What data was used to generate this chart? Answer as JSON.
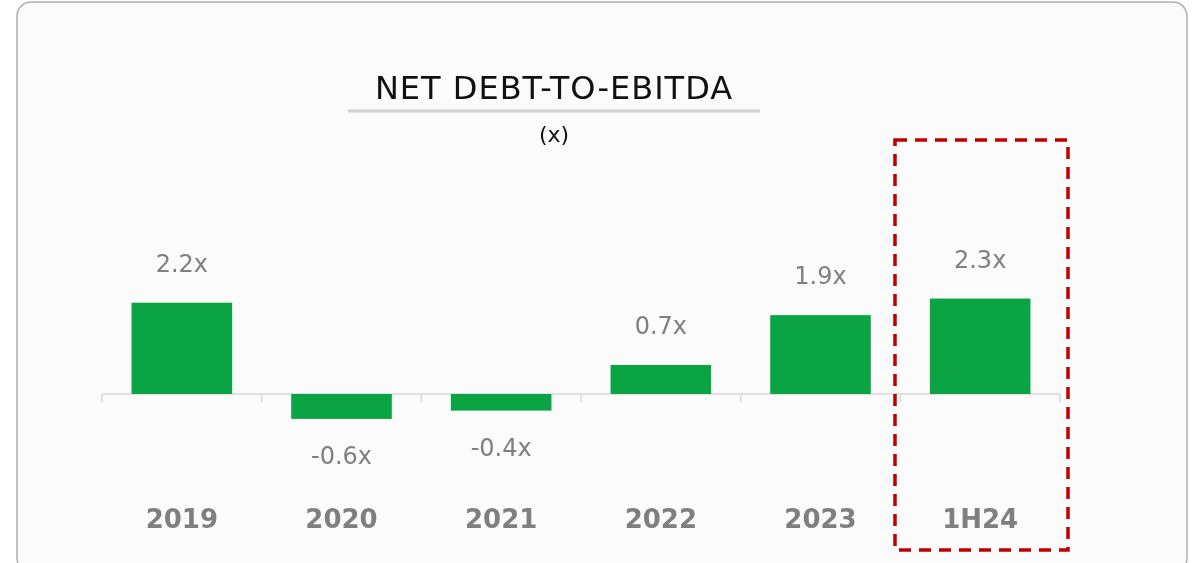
{
  "chart_data": {
    "type": "bar",
    "title": "NET DEBT-TO-EBITDA",
    "subtitle": "(x)",
    "categories": [
      "2019",
      "2020",
      "2021",
      "2022",
      "2023",
      "1H24"
    ],
    "values": [
      2.2,
      -0.6,
      -0.4,
      0.7,
      1.9,
      2.3
    ],
    "value_labels": [
      "2.2x",
      "-0.6x",
      "-0.4x",
      "0.7x",
      "1.9x",
      "2.3x"
    ],
    "color": "#0ba444",
    "relative": false
  }
}
